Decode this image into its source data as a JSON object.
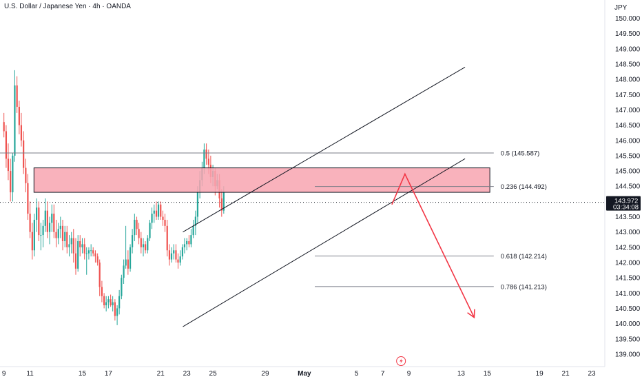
{
  "header": {
    "title": "U.S. Dollar / Japanese Yen · 4h · OANDA"
  },
  "price_axis": {
    "currency": "JPY"
  },
  "current_price": {
    "price": "143.972",
    "countdown": "03:34:08",
    "value": 143.972,
    "color": "#131722"
  },
  "colors": {
    "up": "#26a69a",
    "down": "#ef5350",
    "zone_fill": "#f8a5b0",
    "arrow": "#f23645",
    "lines": "#131722"
  },
  "icons": {
    "bottom_marker": "lightning-icon"
  },
  "chart_data": {
    "type": "candlestick",
    "ylim": [
      138.75,
      150.35
    ],
    "y_ticks": [
      139.0,
      139.5,
      140.0,
      140.5,
      141.0,
      141.5,
      142.0,
      142.5,
      143.0,
      143.5,
      144.0,
      144.5,
      145.0,
      145.5,
      146.0,
      146.5,
      147.0,
      147.5,
      148.0,
      148.5,
      149.0,
      149.5,
      150.0
    ],
    "y_tick_labels": [
      "139.000",
      "139.500",
      "140.000",
      "140.500",
      "141.000",
      "141.500",
      "142.000",
      "142.500",
      "143.000",
      "143.500",
      "144.000",
      "144.500",
      "145.000",
      "145.500",
      "146.000",
      "146.500",
      "147.000",
      "147.500",
      "148.000",
      "148.500",
      "149.000",
      "149.500",
      "150.000"
    ],
    "x_ticks": [
      "9",
      "11",
      "15",
      "17",
      "21",
      "23",
      "25",
      "29",
      "May",
      "5",
      "7",
      "9",
      "13",
      "15",
      "19",
      "21",
      "23"
    ],
    "x_tick_days": [
      -22,
      -20,
      -16,
      -14,
      -10,
      -8,
      -6,
      -2,
      1,
      5,
      7,
      9,
      13,
      15,
      19,
      21,
      23
    ],
    "x_tick_bold": [
      "May"
    ],
    "x_range_days": [
      -22.3,
      24.0
    ],
    "candles": [
      {
        "t": -22.0,
        "o": 146.6,
        "h": 146.9,
        "l": 146.1,
        "c": 146.3
      },
      {
        "t": -21.83,
        "o": 146.3,
        "h": 146.5,
        "l": 145.1,
        "c": 145.4
      },
      {
        "t": -21.67,
        "o": 145.4,
        "h": 145.9,
        "l": 144.7,
        "c": 145.0
      },
      {
        "t": -21.5,
        "o": 145.0,
        "h": 145.4,
        "l": 144.0,
        "c": 144.3
      },
      {
        "t": -21.33,
        "o": 144.3,
        "h": 145.6,
        "l": 144.0,
        "c": 145.5
      },
      {
        "t": -21.17,
        "o": 145.5,
        "h": 148.3,
        "l": 145.3,
        "c": 147.8
      },
      {
        "t": -21.0,
        "o": 147.8,
        "h": 148.1,
        "l": 146.9,
        "c": 147.1
      },
      {
        "t": -20.83,
        "o": 147.1,
        "h": 147.3,
        "l": 146.2,
        "c": 146.5
      },
      {
        "t": -20.67,
        "o": 146.5,
        "h": 146.9,
        "l": 145.8,
        "c": 146.0
      },
      {
        "t": -20.5,
        "o": 146.0,
        "h": 146.3,
        "l": 144.9,
        "c": 145.1
      },
      {
        "t": -20.33,
        "o": 145.1,
        "h": 145.4,
        "l": 144.3,
        "c": 144.6
      },
      {
        "t": -20.17,
        "o": 144.6,
        "h": 144.9,
        "l": 143.4,
        "c": 143.6
      },
      {
        "t": -20.0,
        "o": 143.6,
        "h": 144.0,
        "l": 142.8,
        "c": 143.0
      },
      {
        "t": -19.83,
        "o": 143.0,
        "h": 143.3,
        "l": 142.1,
        "c": 142.4
      },
      {
        "t": -19.67,
        "o": 142.4,
        "h": 143.6,
        "l": 142.2,
        "c": 143.4
      },
      {
        "t": -19.5,
        "o": 143.4,
        "h": 144.1,
        "l": 143.0,
        "c": 143.8
      },
      {
        "t": -19.33,
        "o": 143.8,
        "h": 144.0,
        "l": 142.7,
        "c": 142.9
      },
      {
        "t": -19.17,
        "o": 142.9,
        "h": 143.3,
        "l": 142.4,
        "c": 142.9
      },
      {
        "t": -19.0,
        "o": 142.9,
        "h": 143.4,
        "l": 142.5,
        "c": 143.2
      },
      {
        "t": -18.83,
        "o": 143.2,
        "h": 144.1,
        "l": 143.0,
        "c": 143.7
      },
      {
        "t": -18.67,
        "o": 143.7,
        "h": 144.0,
        "l": 142.8,
        "c": 143.0
      },
      {
        "t": -18.5,
        "o": 143.0,
        "h": 143.5,
        "l": 142.6,
        "c": 143.3
      },
      {
        "t": -18.33,
        "o": 143.3,
        "h": 143.9,
        "l": 143.0,
        "c": 143.6
      },
      {
        "t": -18.17,
        "o": 143.6,
        "h": 143.9,
        "l": 142.8,
        "c": 143.0
      },
      {
        "t": -18.0,
        "o": 143.0,
        "h": 143.4,
        "l": 142.5,
        "c": 142.8
      },
      {
        "t": -17.83,
        "o": 142.8,
        "h": 143.3,
        "l": 142.6,
        "c": 143.1
      },
      {
        "t": -17.67,
        "o": 143.1,
        "h": 143.5,
        "l": 142.8,
        "c": 143.2
      },
      {
        "t": -17.5,
        "o": 143.2,
        "h": 143.4,
        "l": 142.4,
        "c": 142.7
      },
      {
        "t": -17.33,
        "o": 142.7,
        "h": 143.2,
        "l": 142.5,
        "c": 143.0
      },
      {
        "t": -17.17,
        "o": 143.0,
        "h": 143.2,
        "l": 142.3,
        "c": 142.5
      },
      {
        "t": -17.0,
        "o": 142.5,
        "h": 142.9,
        "l": 142.2,
        "c": 142.6
      },
      {
        "t": -16.83,
        "o": 142.6,
        "h": 143.0,
        "l": 142.3,
        "c": 142.8
      },
      {
        "t": -16.67,
        "o": 142.8,
        "h": 143.1,
        "l": 142.0,
        "c": 142.3
      },
      {
        "t": -16.5,
        "o": 142.3,
        "h": 142.8,
        "l": 141.6,
        "c": 141.8
      },
      {
        "t": -16.33,
        "o": 141.8,
        "h": 142.9,
        "l": 141.7,
        "c": 142.7
      },
      {
        "t": -16.17,
        "o": 142.7,
        "h": 142.9,
        "l": 142.2,
        "c": 142.5
      },
      {
        "t": -16.0,
        "o": 142.5,
        "h": 142.8,
        "l": 142.3,
        "c": 142.6
      },
      {
        "t": -15.83,
        "o": 142.6,
        "h": 142.8,
        "l": 142.1,
        "c": 142.3
      },
      {
        "t": -15.67,
        "o": 142.3,
        "h": 142.5,
        "l": 141.6,
        "c": 142.3
      },
      {
        "t": -15.5,
        "o": 142.3,
        "h": 142.5,
        "l": 142.1,
        "c": 142.4
      },
      {
        "t": -15.33,
        "o": 142.4,
        "h": 142.6,
        "l": 142.2,
        "c": 142.4
      },
      {
        "t": -15.17,
        "o": 142.4,
        "h": 142.5,
        "l": 142.2,
        "c": 142.3
      },
      {
        "t": -15.0,
        "o": 142.3,
        "h": 142.4,
        "l": 142.0,
        "c": 142.2
      },
      {
        "t": -14.83,
        "o": 142.2,
        "h": 142.3,
        "l": 141.9,
        "c": 142.0
      },
      {
        "t": -14.67,
        "o": 142.0,
        "h": 142.1,
        "l": 140.9,
        "c": 141.2
      },
      {
        "t": -14.5,
        "o": 141.2,
        "h": 141.4,
        "l": 140.7,
        "c": 140.9
      },
      {
        "t": -14.33,
        "o": 140.9,
        "h": 141.0,
        "l": 140.5,
        "c": 140.6
      },
      {
        "t": -14.17,
        "o": 140.6,
        "h": 140.9,
        "l": 140.4,
        "c": 140.7
      },
      {
        "t": -14.0,
        "o": 140.7,
        "h": 140.9,
        "l": 140.5,
        "c": 140.8
      },
      {
        "t": -13.83,
        "o": 140.8,
        "h": 140.95,
        "l": 140.55,
        "c": 140.6
      },
      {
        "t": -13.67,
        "o": 140.6,
        "h": 140.9,
        "l": 140.4,
        "c": 140.7
      },
      {
        "t": -13.5,
        "o": 140.7,
        "h": 140.8,
        "l": 140.1,
        "c": 140.25
      },
      {
        "t": -13.33,
        "o": 140.25,
        "h": 140.6,
        "l": 139.95,
        "c": 140.5
      },
      {
        "t": -13.17,
        "o": 140.5,
        "h": 141.1,
        "l": 140.3,
        "c": 140.9
      },
      {
        "t": -13.0,
        "o": 140.9,
        "h": 141.6,
        "l": 140.8,
        "c": 141.5
      },
      {
        "t": -12.83,
        "o": 141.5,
        "h": 142.1,
        "l": 141.3,
        "c": 141.9
      },
      {
        "t": -12.67,
        "o": 141.9,
        "h": 143.2,
        "l": 141.8,
        "c": 142.1
      },
      {
        "t": -12.5,
        "o": 142.1,
        "h": 142.4,
        "l": 141.6,
        "c": 141.8
      },
      {
        "t": -12.33,
        "o": 141.8,
        "h": 142.6,
        "l": 141.7,
        "c": 142.5
      },
      {
        "t": -12.17,
        "o": 142.5,
        "h": 143.1,
        "l": 142.3,
        "c": 142.9
      },
      {
        "t": -12.0,
        "o": 142.9,
        "h": 143.6,
        "l": 142.7,
        "c": 143.4
      },
      {
        "t": -11.83,
        "o": 143.4,
        "h": 143.5,
        "l": 142.9,
        "c": 143.1
      },
      {
        "t": -11.67,
        "o": 143.1,
        "h": 143.3,
        "l": 142.6,
        "c": 142.8
      },
      {
        "t": -11.5,
        "o": 142.8,
        "h": 143.0,
        "l": 142.3,
        "c": 142.5
      },
      {
        "t": -11.33,
        "o": 142.5,
        "h": 142.8,
        "l": 142.2,
        "c": 142.6
      },
      {
        "t": -11.17,
        "o": 142.6,
        "h": 142.7,
        "l": 142.3,
        "c": 142.4
      },
      {
        "t": -11.0,
        "o": 142.4,
        "h": 142.9,
        "l": 142.3,
        "c": 142.8
      },
      {
        "t": -10.83,
        "o": 142.8,
        "h": 143.4,
        "l": 142.7,
        "c": 143.3
      },
      {
        "t": -10.67,
        "o": 143.3,
        "h": 143.8,
        "l": 143.1,
        "c": 143.6
      },
      {
        "t": -10.5,
        "o": 143.6,
        "h": 143.9,
        "l": 143.3,
        "c": 143.7
      },
      {
        "t": -10.33,
        "o": 143.7,
        "h": 144.0,
        "l": 143.4,
        "c": 143.5
      },
      {
        "t": -10.17,
        "o": 143.5,
        "h": 144.0,
        "l": 143.4,
        "c": 143.9
      },
      {
        "t": -10.0,
        "o": 143.9,
        "h": 144.0,
        "l": 143.4,
        "c": 143.5
      },
      {
        "t": -9.83,
        "o": 143.5,
        "h": 143.7,
        "l": 143.2,
        "c": 143.4
      },
      {
        "t": -9.67,
        "o": 143.4,
        "h": 143.6,
        "l": 143.0,
        "c": 143.2
      },
      {
        "t": -9.5,
        "o": 143.2,
        "h": 143.4,
        "l": 142.2,
        "c": 142.4
      },
      {
        "t": -9.33,
        "o": 142.4,
        "h": 142.6,
        "l": 141.9,
        "c": 142.1
      },
      {
        "t": -9.17,
        "o": 142.1,
        "h": 142.5,
        "l": 142.0,
        "c": 142.3
      },
      {
        "t": -9.0,
        "o": 142.3,
        "h": 142.6,
        "l": 142.1,
        "c": 142.4
      },
      {
        "t": -8.83,
        "o": 142.4,
        "h": 142.6,
        "l": 142.0,
        "c": 142.1
      },
      {
        "t": -8.67,
        "o": 142.1,
        "h": 142.3,
        "l": 141.8,
        "c": 142.0
      },
      {
        "t": -8.5,
        "o": 142.0,
        "h": 142.4,
        "l": 141.9,
        "c": 142.2
      },
      {
        "t": -8.33,
        "o": 142.2,
        "h": 142.6,
        "l": 142.1,
        "c": 142.5
      },
      {
        "t": -8.17,
        "o": 142.5,
        "h": 142.8,
        "l": 142.3,
        "c": 142.6
      },
      {
        "t": -8.0,
        "o": 142.6,
        "h": 142.8,
        "l": 142.4,
        "c": 142.7
      },
      {
        "t": -7.83,
        "o": 142.7,
        "h": 142.9,
        "l": 142.5,
        "c": 142.6
      },
      {
        "t": -7.67,
        "o": 142.6,
        "h": 143.1,
        "l": 142.5,
        "c": 142.9
      },
      {
        "t": -7.5,
        "o": 142.9,
        "h": 143.4,
        "l": 142.8,
        "c": 143.2
      },
      {
        "t": -7.33,
        "o": 143.2,
        "h": 143.7,
        "l": 142.9,
        "c": 143.5
      },
      {
        "t": -7.17,
        "o": 143.5,
        "h": 144.5,
        "l": 143.3,
        "c": 144.3
      },
      {
        "t": -7.0,
        "o": 144.3,
        "h": 145.0,
        "l": 144.1,
        "c": 144.7
      },
      {
        "t": -6.83,
        "o": 144.7,
        "h": 145.3,
        "l": 144.5,
        "c": 145.1
      },
      {
        "t": -6.67,
        "o": 145.1,
        "h": 145.9,
        "l": 144.9,
        "c": 145.7
      },
      {
        "t": -6.5,
        "o": 145.7,
        "h": 145.9,
        "l": 145.2,
        "c": 145.4
      },
      {
        "t": -6.33,
        "o": 145.4,
        "h": 145.7,
        "l": 144.9,
        "c": 145.2
      },
      {
        "t": -6.17,
        "o": 145.2,
        "h": 145.5,
        "l": 144.6,
        "c": 144.8
      },
      {
        "t": -6.0,
        "o": 144.8,
        "h": 145.2,
        "l": 144.5,
        "c": 145.0
      },
      {
        "t": -5.83,
        "o": 145.0,
        "h": 145.1,
        "l": 144.2,
        "c": 144.5
      },
      {
        "t": -5.67,
        "o": 144.5,
        "h": 144.9,
        "l": 144.4,
        "c": 144.7
      },
      {
        "t": -5.5,
        "o": 144.7,
        "h": 144.9,
        "l": 143.8,
        "c": 144.1
      },
      {
        "t": -5.33,
        "o": 144.1,
        "h": 144.4,
        "l": 143.5,
        "c": 143.7
      },
      {
        "t": -5.17,
        "o": 143.7,
        "h": 144.5,
        "l": 143.6,
        "c": 144.3
      }
    ],
    "fib_levels": [
      {
        "ratio": "0.5",
        "price": 145.587,
        "label": "0.5 (145.587)"
      },
      {
        "ratio": "0.236",
        "price": 144.492,
        "label": "0.236 (144.492)"
      },
      {
        "ratio": "0.618",
        "price": 142.214,
        "label": "0.618 (142.214)"
      },
      {
        "ratio": "0.786",
        "price": 141.213,
        "label": "0.786 (141.213)"
      }
    ],
    "zone": {
      "top": 145.1,
      "bottom": 144.3
    },
    "channel": {
      "upper": {
        "from": [
          -8.3,
          143.0
        ],
        "to": [
          13.3,
          148.4
        ]
      },
      "lower": {
        "from": [
          -8.3,
          139.9
        ],
        "to": [
          13.3,
          145.4
        ]
      }
    },
    "projection": {
      "points": [
        [
          7.7,
          143.9
        ],
        [
          8.7,
          144.9
        ],
        [
          14.0,
          140.2
        ]
      ]
    },
    "grid": false,
    "legend": "none"
  }
}
